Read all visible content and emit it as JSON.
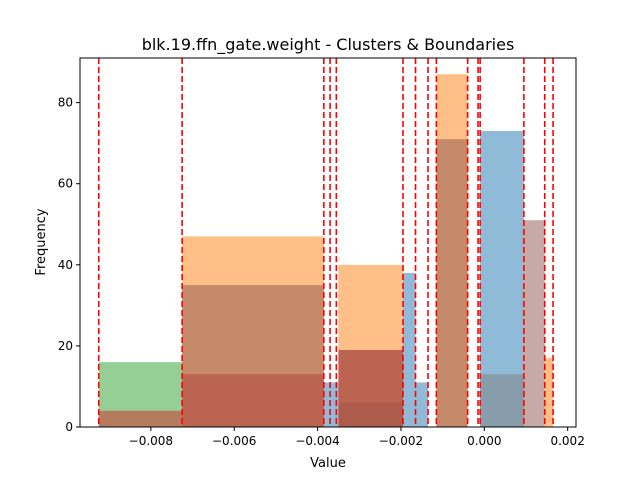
{
  "chart_data": {
    "type": "bar",
    "title": "blk.19.ffn_gate.weight - Clusters & Boundaries",
    "xlabel": "Value",
    "ylabel": "Frequency",
    "xlim": [
      -0.0097,
      0.0022
    ],
    "ylim": [
      0,
      91
    ],
    "x_ticks": [
      -0.008,
      -0.006,
      -0.004,
      -0.002,
      0.0,
      0.002
    ],
    "x_tick_labels": [
      "−0.008",
      "−0.006",
      "−0.004",
      "−0.002",
      "0.000",
      "0.002"
    ],
    "y_ticks": [
      0,
      20,
      40,
      60,
      80
    ],
    "y_tick_labels": [
      "0",
      "20",
      "40",
      "60",
      "80"
    ],
    "boundaries": [
      -0.00925,
      -0.00725,
      -0.00385,
      -0.0037,
      -0.00355,
      -0.00195,
      -0.00165,
      -0.00135,
      -0.00115,
      -0.0004,
      -0.00015,
      -0.0001,
      0.00095,
      0.00145,
      0.00165
    ],
    "boundary_color": "#ff0000",
    "series": [
      {
        "color": "#1f77b4",
        "bins": [
          {
            "x0": -0.0092,
            "x1": -0.00725,
            "count": 0
          },
          {
            "x0": -0.00385,
            "x1": -0.0035,
            "count": 11
          },
          {
            "x0": -0.0035,
            "x1": -0.00195,
            "count": 6
          },
          {
            "x0": -0.00195,
            "x1": -0.00165,
            "count": 38
          },
          {
            "x0": -0.00165,
            "x1": -0.00135,
            "count": 11
          },
          {
            "x0": -0.0001,
            "x1": 0.00095,
            "count": 73
          }
        ]
      },
      {
        "color": "#ff7f0e",
        "bins": [
          {
            "x0": -0.00725,
            "x1": -0.00385,
            "count": 47
          },
          {
            "x0": -0.0035,
            "x1": -0.00195,
            "count": 40
          },
          {
            "x0": -0.00115,
            "x1": -0.0004,
            "count": 87
          },
          {
            "x0": 0.00145,
            "x1": 0.00165,
            "count": 17
          }
        ]
      },
      {
        "color": "#2ca02c",
        "bins": [
          {
            "x0": -0.00925,
            "x1": -0.00725,
            "count": 16
          }
        ]
      },
      {
        "color": "#d62728",
        "bins": [
          {
            "x0": -0.00925,
            "x1": -0.00725,
            "count": 4
          },
          {
            "x0": -0.00725,
            "x1": -0.00385,
            "count": 13
          },
          {
            "x0": -0.0035,
            "x1": -0.00195,
            "count": 19
          }
        ]
      },
      {
        "color": "#8c564b",
        "bins": [
          {
            "x0": -0.00725,
            "x1": -0.00385,
            "count": 35
          },
          {
            "x0": -0.0035,
            "x1": -0.00195,
            "count": 19
          },
          {
            "x0": -0.00115,
            "x1": -0.0004,
            "count": 71
          },
          {
            "x0": 0.00095,
            "x1": 0.00145,
            "count": 51
          }
        ]
      },
      {
        "color": "#7f7f7f",
        "bins": [
          {
            "x0": -0.0001,
            "x1": 0.00095,
            "count": 13
          }
        ]
      }
    ],
    "grid": false,
    "legend": "none"
  }
}
